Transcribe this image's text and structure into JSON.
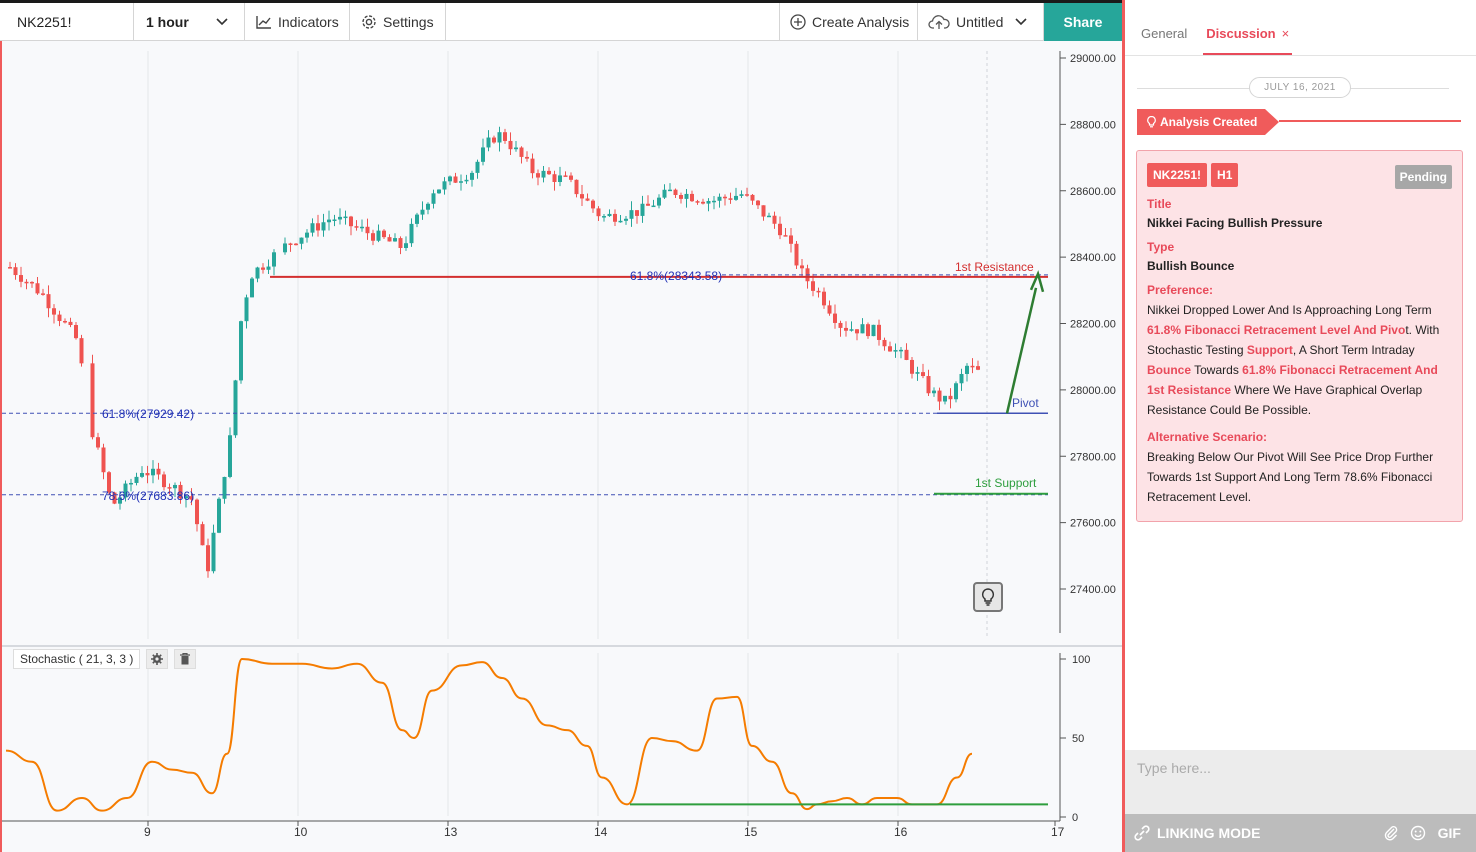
{
  "toolbar": {
    "symbol": "NK2251!",
    "interval": "1 hour",
    "indicators": "Indicators",
    "settings": "Settings",
    "create_analysis": "Create Analysis",
    "untitled": "Untitled",
    "share": "Share"
  },
  "colors": {
    "accent": "#f05b5b",
    "share": "#26a69a",
    "candle_up": "#26a69a",
    "candle_down": "#ef5350",
    "resistance": "#d32f2f",
    "support": "#2e9e3e",
    "pivot": "#3f51b5",
    "stochastic": "#f57c00"
  },
  "chart": {
    "annotations": {
      "resistance_label": "1st Resistance",
      "support_label": "1st Support",
      "pivot_label": "Pivot",
      "fib_618_upper": "61.8%(28343.58)",
      "fib_618_lower": "61.8%(27929.42)",
      "fib_786": "78.6%(27683.86)"
    },
    "indicator_legend": "Stochastic ( 21, 3, 3 )"
  },
  "chart_data": {
    "type": "candlestick",
    "price_axis": [
      "29000.00",
      "28800.00",
      "28600.00",
      "28400.00",
      "28200.00",
      "28000.00",
      "27800.00",
      "27600.00",
      "27400.00"
    ],
    "time_axis": [
      "9",
      "10",
      "13",
      "14",
      "15",
      "16",
      "17"
    ],
    "indicator_axis": [
      "100",
      "50",
      "0"
    ],
    "ylim": [
      27300,
      29050
    ],
    "levels": {
      "resistance": 28343.58,
      "pivot": 27929.42,
      "support": 27683.86
    }
  },
  "panel": {
    "tab_general": "General",
    "tab_discussion": "Discussion",
    "tab_close": "×",
    "date": "JULY 16, 2021",
    "event": "Analysis Created",
    "card": {
      "symbol": "NK2251!",
      "timeframe": "H1",
      "status": "Pending",
      "title_label": "Title",
      "title": "Nikkei Facing Bullish Pressure",
      "type_label": "Type",
      "type": "Bullish Bounce",
      "pref_label": "Preference:",
      "pref": {
        "p1": "Nikkei Dropped Lower And Is Approaching Long Term ",
        "h1": "61.8% Fibonacci Retracement Level And Pivo",
        "p2": "t. With Stochastic Testing ",
        "h2": "Support",
        "p3": ", A Short Term Intraday ",
        "h3": "Bounce",
        "p4": " Towards ",
        "h4": "61.8% Fibonacci Retracement And 1st Resistance",
        "p5": " Where We Have Graphical Overlap Resistance Could Be Possible."
      },
      "alt_label": "Alternative Scenario:",
      "alt": "Breaking Below Our Pivot Will See Price Drop Further Towards 1st Support And Long Term 78.6% Fibonacci Retracement Level."
    },
    "input_placeholder": "Type here...",
    "linking_mode": "LINKING MODE",
    "gif": "GIF"
  }
}
